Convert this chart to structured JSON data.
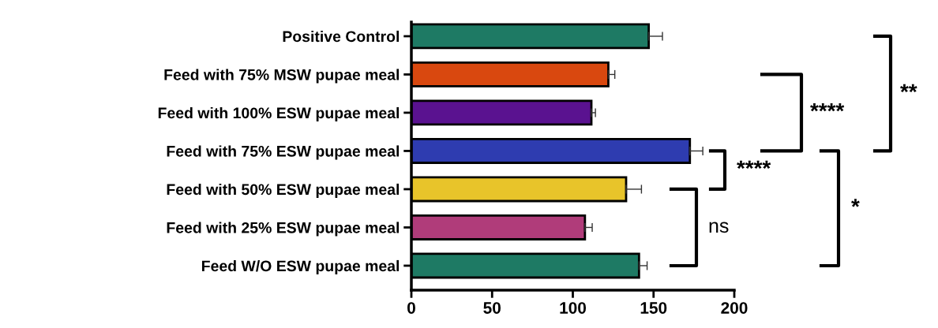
{
  "chart_data": {
    "type": "bar",
    "orientation": "horizontal",
    "categories": [
      "Positive Control",
      "Feed with 75% MSW pupae meal",
      "Feed with 100% ESW pupae meal",
      "Feed with 75% ESW pupae meal",
      "Feed with 50% ESW pupae meal",
      "Feed with 25% ESW pupae meal",
      "Feed W/O ESW pupae meal"
    ],
    "values": [
      147,
      122,
      111.5,
      172.5,
      133,
      107.5,
      141
    ],
    "errors": [
      8.5,
      4,
      2.5,
      8,
      9.5,
      4.5,
      5
    ],
    "colors": [
      "#1e7a64",
      "#d9480f",
      "#5a1290",
      "#2e3cb0",
      "#e8c42a",
      "#b03c7a",
      "#1e7a64"
    ],
    "xlim": [
      0,
      200
    ],
    "xticks": [
      0,
      50,
      100,
      150,
      200
    ],
    "grid": false,
    "annotations": [
      "ns",
      "****",
      "****",
      "*",
      "**"
    ]
  }
}
